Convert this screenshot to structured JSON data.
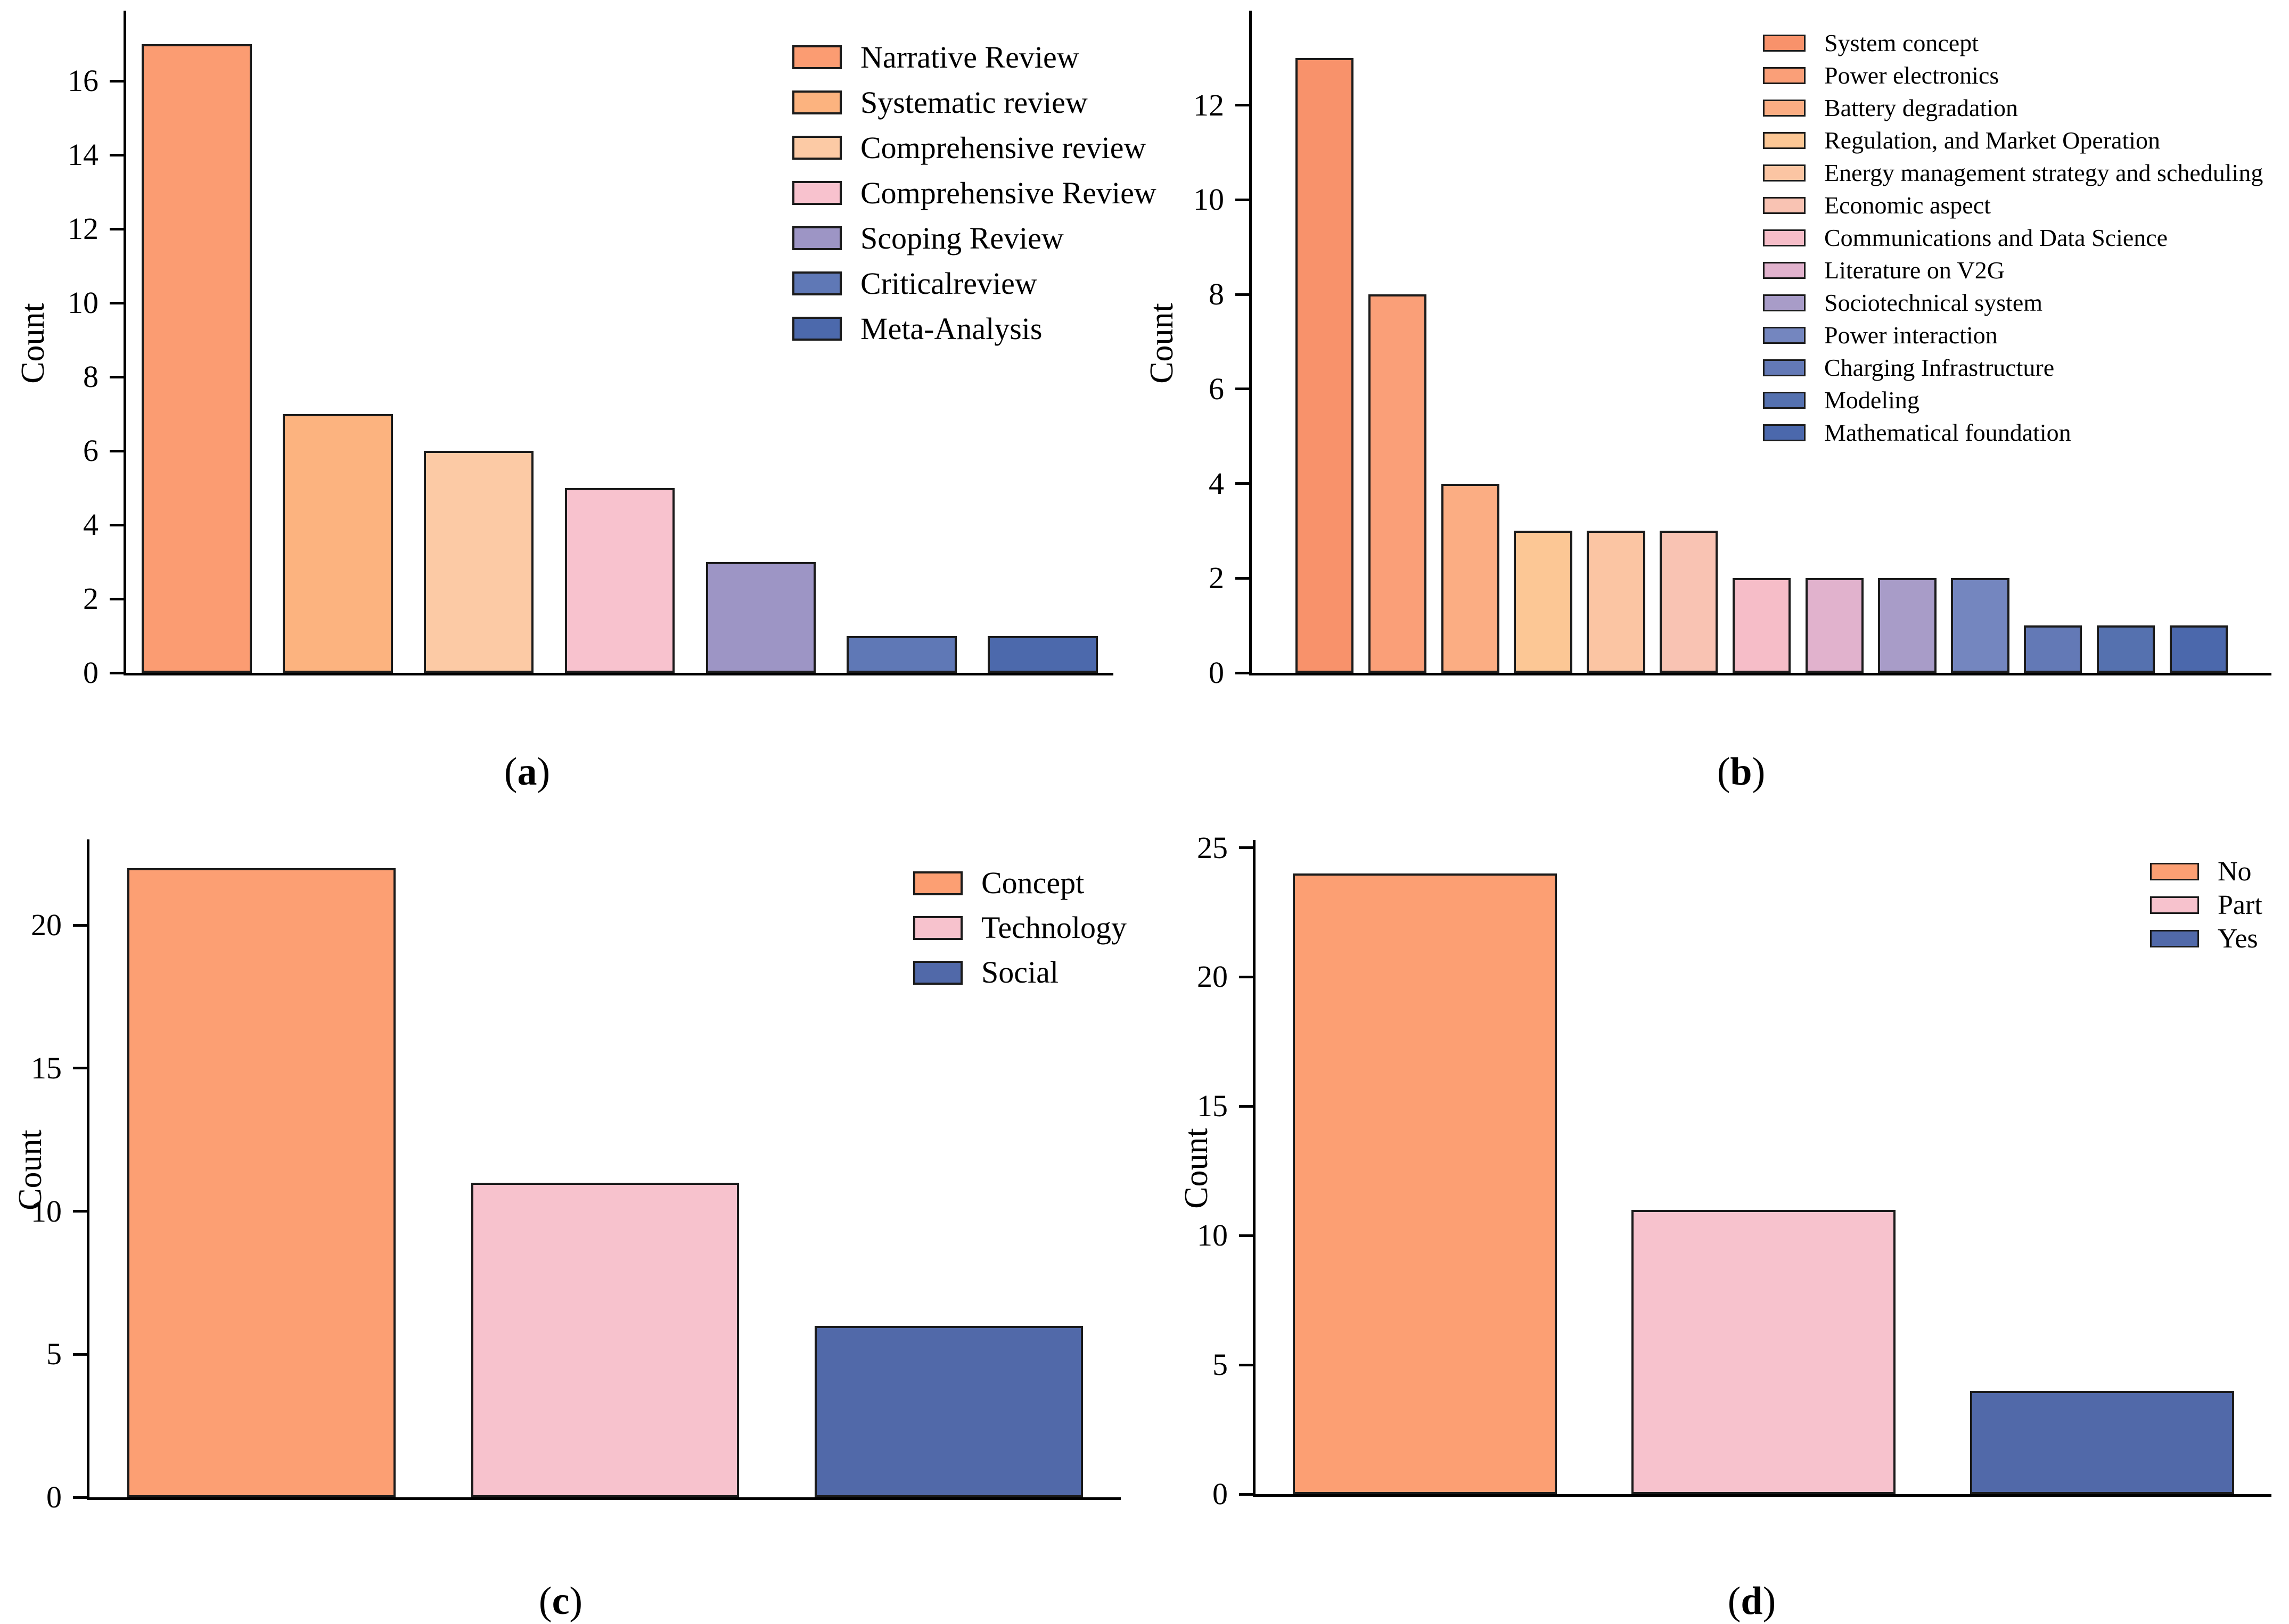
{
  "chart_data": [
    {
      "type": "bar",
      "panel": "a",
      "label_open": "(",
      "label_letter": "a",
      "label_close": ")",
      "ylabel": "Count",
      "yticks": [
        0,
        2,
        4,
        6,
        8,
        10,
        12,
        14,
        16
      ],
      "ylim": [
        0,
        17.9
      ],
      "categories": [
        "Narrative Review",
        "Systematic review",
        "Comprehensive review",
        "Comprehensive Review",
        "Scoping Review",
        "Criticalreview",
        "Meta-Analysis"
      ],
      "values": [
        17,
        7,
        6,
        5,
        3,
        1,
        1
      ],
      "colors": [
        "#FB9C72",
        "#FCB37F",
        "#FCCAA5",
        "#F8C2CE",
        "#9D95C5",
        "#5F78B6",
        "#4C69AC"
      ],
      "edge_color": "#1b1b1b",
      "legend_position": "upper right",
      "grid": false,
      "bar_width_frac": 0.78,
      "x_pad_slots": 0
    },
    {
      "type": "bar",
      "panel": "b",
      "label_open": "(",
      "label_letter": "b",
      "label_close": ")",
      "ylabel": "Count",
      "yticks": [
        0,
        2,
        4,
        6,
        8,
        10,
        12
      ],
      "ylim": [
        0,
        14
      ],
      "categories": [
        "System concept",
        "Power electronics",
        "Battery degradation",
        "Regulation, and Market Operation",
        "Energy management strategy and scheduling",
        "Economic aspect",
        "Communications and Data Science",
        "Literature on V2G",
        "Sociotechnical system",
        "Power interaction",
        "Charging Infrastructure",
        "Modeling",
        "Mathematical foundation"
      ],
      "values": [
        13,
        8,
        4,
        3,
        3,
        3,
        2,
        2,
        2,
        2,
        1,
        1,
        1
      ],
      "colors": [
        "#F8926B",
        "#FA9F78",
        "#FBAD83",
        "#FCC795",
        "#FBC5A3",
        "#F9C3B3",
        "#F6BDC8",
        "#E1B2CD",
        "#A89CC8",
        "#7486BF",
        "#6379B6",
        "#5571AF",
        "#4B68AC"
      ],
      "edge_color": "#1b1b1b",
      "legend_position": "upper right",
      "grid": false,
      "bar_width_frac": 0.8,
      "x_pad_slots": 0.5
    },
    {
      "type": "bar",
      "panel": "c",
      "label_open": "(",
      "label_letter": "c",
      "label_close": ")",
      "ylabel": "Count",
      "yticks": [
        0,
        5,
        10,
        15,
        20
      ],
      "ylim": [
        0,
        23
      ],
      "categories": [
        "Concept",
        "Technology",
        "Social"
      ],
      "values": [
        22,
        11,
        6
      ],
      "colors": [
        "#FC9F73",
        "#F7C2CD",
        "#5169A9"
      ],
      "edge_color": "#1b1b1b",
      "legend_position": "upper right",
      "grid": false,
      "bar_width_frac": 0.78,
      "x_pad_slots": 0
    },
    {
      "type": "bar",
      "panel": "d",
      "label_open": "(",
      "label_letter": "d",
      "label_close": ")",
      "ylabel": "Count",
      "yticks": [
        0,
        5,
        10,
        15,
        20,
        25
      ],
      "ylim": [
        0,
        25.3
      ],
      "categories": [
        "No",
        "Part",
        "Yes"
      ],
      "values": [
        24,
        11,
        4
      ],
      "colors": [
        "#FC9F73",
        "#F7C2CD",
        "#5169A9"
      ],
      "edge_color": "#1b1b1b",
      "legend_position": "upper right",
      "grid": false,
      "bar_width_frac": 0.78,
      "x_pad_slots": 0
    }
  ]
}
